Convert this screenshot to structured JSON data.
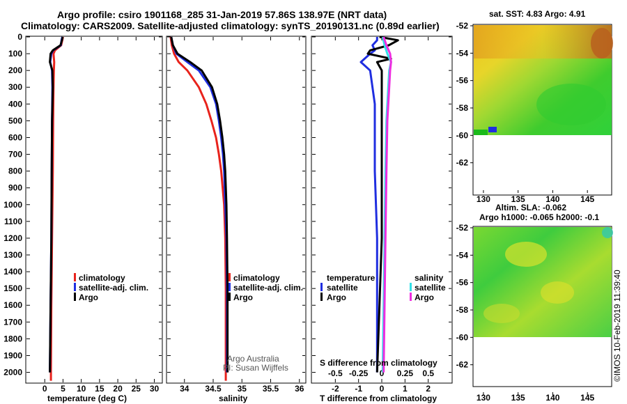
{
  "title": {
    "line1": "Argo profile: csiro 1901168_285 31-Jan-2019 57.86S 138.97E (NRT data)",
    "line2": "Climatology: CARS2009. Satellite-adjusted climatology: synTS_20190131.nc (0.89d earlier)"
  },
  "colors": {
    "climatology": "#e8231c",
    "satellite": "#1f2ee0",
    "argo": "#000000",
    "sat_salinity": "#33e0e8",
    "argo_salinity": "#ee2ee0"
  },
  "depth_ticks": [
    0,
    100,
    200,
    300,
    400,
    500,
    600,
    700,
    800,
    900,
    1000,
    1100,
    1200,
    1300,
    1400,
    1500,
    1600,
    1700,
    1800,
    1900,
    2000
  ],
  "chart_data": [
    {
      "type": "line",
      "xlabel": "temperature (deg C)",
      "ylabel": "",
      "xlim": [
        -5,
        32
      ],
      "ylim": [
        2060,
        0
      ],
      "xticks": [
        0,
        5,
        10,
        15,
        20,
        25,
        30
      ],
      "legend": [
        "climatology",
        "satellite-adj. clim.",
        "Argo"
      ],
      "legend_position": "bottom-right",
      "series": [
        {
          "name": "climatology",
          "color": "#e8231c",
          "depth": [
            0,
            20,
            50,
            80,
            100,
            150,
            200,
            300,
            500,
            800,
            1200,
            1600,
            2000,
            2050
          ],
          "values": [
            5.0,
            4.8,
            4.5,
            2.8,
            2.4,
            2.6,
            2.5,
            2.4,
            2.3,
            2.2,
            2.0,
            1.8,
            1.7,
            1.7
          ]
        },
        {
          "name": "satellite-adj. clim.",
          "color": "#1f2ee0",
          "depth": [
            0,
            20,
            50,
            80,
            100,
            150,
            200,
            300,
            500,
            800,
            1200,
            1600,
            2000
          ],
          "values": [
            4.8,
            4.6,
            4.4,
            2.3,
            1.8,
            1.5,
            2.0,
            2.1,
            2.0,
            1.9,
            1.8,
            1.6,
            1.4
          ]
        },
        {
          "name": "Argo",
          "color": "#000000",
          "depth": [
            0,
            20,
            50,
            80,
            100,
            150,
            200,
            300,
            500,
            800,
            1200,
            1600,
            2000
          ],
          "values": [
            4.9,
            4.7,
            4.3,
            2.2,
            1.6,
            1.4,
            2.1,
            2.2,
            2.0,
            1.9,
            1.8,
            1.6,
            1.4
          ]
        }
      ]
    },
    {
      "type": "line",
      "xlabel": "salinity",
      "ylabel": "",
      "xlim": [
        33.7,
        36.1
      ],
      "ylim": [
        2060,
        0
      ],
      "xticks": [
        34,
        34.5,
        35,
        35.5,
        36
      ],
      "legend": [
        "climatology",
        "satellite-adj. clim.",
        "Argo"
      ],
      "legend_position": "bottom-right",
      "annotation": [
        "Argo Australia",
        "PI: Susan Wijffels"
      ],
      "series": [
        {
          "name": "climatology",
          "color": "#e8231c",
          "depth": [
            0,
            50,
            100,
            150,
            200,
            300,
            400,
            500,
            600,
            700,
            800,
            1000,
            1200,
            1500,
            2050
          ],
          "values": [
            33.76,
            33.78,
            33.82,
            33.9,
            34.05,
            34.25,
            34.38,
            34.47,
            34.55,
            34.6,
            34.64,
            34.69,
            34.71,
            34.72,
            34.72
          ]
        },
        {
          "name": "satellite-adj. clim.",
          "color": "#1f2ee0",
          "depth": [
            0,
            50,
            100,
            150,
            200,
            300,
            400,
            500,
            600,
            700,
            800,
            1000,
            1200,
            1500,
            2000
          ],
          "values": [
            33.77,
            33.8,
            33.86,
            34.05,
            34.25,
            34.45,
            34.55,
            34.6,
            34.64,
            34.67,
            34.69,
            34.71,
            34.73,
            34.74,
            34.74
          ]
        },
        {
          "name": "Argo",
          "color": "#000000",
          "depth": [
            0,
            50,
            100,
            150,
            200,
            300,
            400,
            500,
            600,
            700,
            800,
            1000,
            1200,
            1500,
            2000
          ],
          "values": [
            33.77,
            33.8,
            33.88,
            34.1,
            34.3,
            34.48,
            34.57,
            34.62,
            34.66,
            34.69,
            34.71,
            34.73,
            34.74,
            34.75,
            34.75
          ]
        }
      ]
    },
    {
      "type": "line",
      "xlabel": "T difference from climatology",
      "xlabel2": "S difference from climatology",
      "xlim": [
        -3,
        3
      ],
      "xlim2": [
        -0.75,
        0.75
      ],
      "ylim": [
        2060,
        0
      ],
      "xticks": [
        -2,
        -1,
        0,
        1,
        2
      ],
      "xticks2": [
        -0.5,
        -0.25,
        0,
        0.25,
        0.5
      ],
      "legend_left_title": "temperature",
      "legend_right_title": "salinity",
      "legend_left": [
        "satellite",
        "Argo"
      ],
      "legend_right": [
        "satellite",
        "Argo"
      ],
      "series": [
        {
          "name": "temperature satellite",
          "color": "#1f2ee0",
          "depth": [
            0,
            20,
            50,
            80,
            100,
            150,
            200,
            400,
            800,
            1200,
            1600,
            2000
          ],
          "values": [
            -0.2,
            -0.2,
            -0.4,
            -0.3,
            -0.5,
            -0.9,
            -0.5,
            -0.3,
            -0.3,
            -0.2,
            -0.2,
            -0.2
          ]
        },
        {
          "name": "temperature Argo",
          "color": "#000000",
          "depth": [
            0,
            20,
            50,
            80,
            100,
            130,
            150,
            200,
            400,
            800,
            1200,
            1600,
            2000
          ],
          "values": [
            -0.1,
            0.7,
            0.3,
            -0.5,
            -0.6,
            0.4,
            -0.2,
            0.0,
            0.0,
            0.0,
            0.0,
            -0.1,
            -0.2
          ]
        },
        {
          "name": "salinity satellite",
          "color": "#33e0e8",
          "depth": [
            0,
            50,
            100,
            150,
            200,
            300,
            500,
            800,
            1200,
            1600,
            2000
          ],
          "values": [
            0.01,
            0.03,
            0.06,
            0.1,
            0.08,
            0.07,
            0.05,
            0.04,
            0.03,
            0.02,
            0.01
          ]
        },
        {
          "name": "salinity Argo",
          "color": "#ee2ee0",
          "depth": [
            0,
            50,
            100,
            150,
            200,
            300,
            500,
            800,
            1200,
            1600,
            2000
          ],
          "values": [
            0.02,
            0.05,
            0.09,
            0.1,
            0.09,
            0.08,
            0.06,
            0.05,
            0.04,
            0.03,
            0.02
          ]
        }
      ]
    },
    {
      "type": "heatmap",
      "title": "sat. SST: 4.83 Argo: 4.91",
      "xticks": [
        130,
        135,
        140,
        145
      ],
      "yticks": [
        -52,
        -54,
        -56,
        -58,
        -60,
        -62
      ],
      "xlim": [
        128.5,
        148.5
      ],
      "ylim": [
        -64,
        -52
      ]
    },
    {
      "type": "heatmap",
      "title_line1": "Altim. SLA: -0.062",
      "title_line2": "Argo h1000: -0.065 h2000: -0.1",
      "xticks": [
        130,
        135,
        140,
        145
      ],
      "yticks": [
        -52,
        -54,
        -56,
        -58,
        -60,
        -62
      ],
      "xlim": [
        128.5,
        148.5
      ],
      "ylim": [
        -64,
        -52
      ]
    }
  ],
  "credit": "©IMOS 10-Feb-2019 11:39:40"
}
